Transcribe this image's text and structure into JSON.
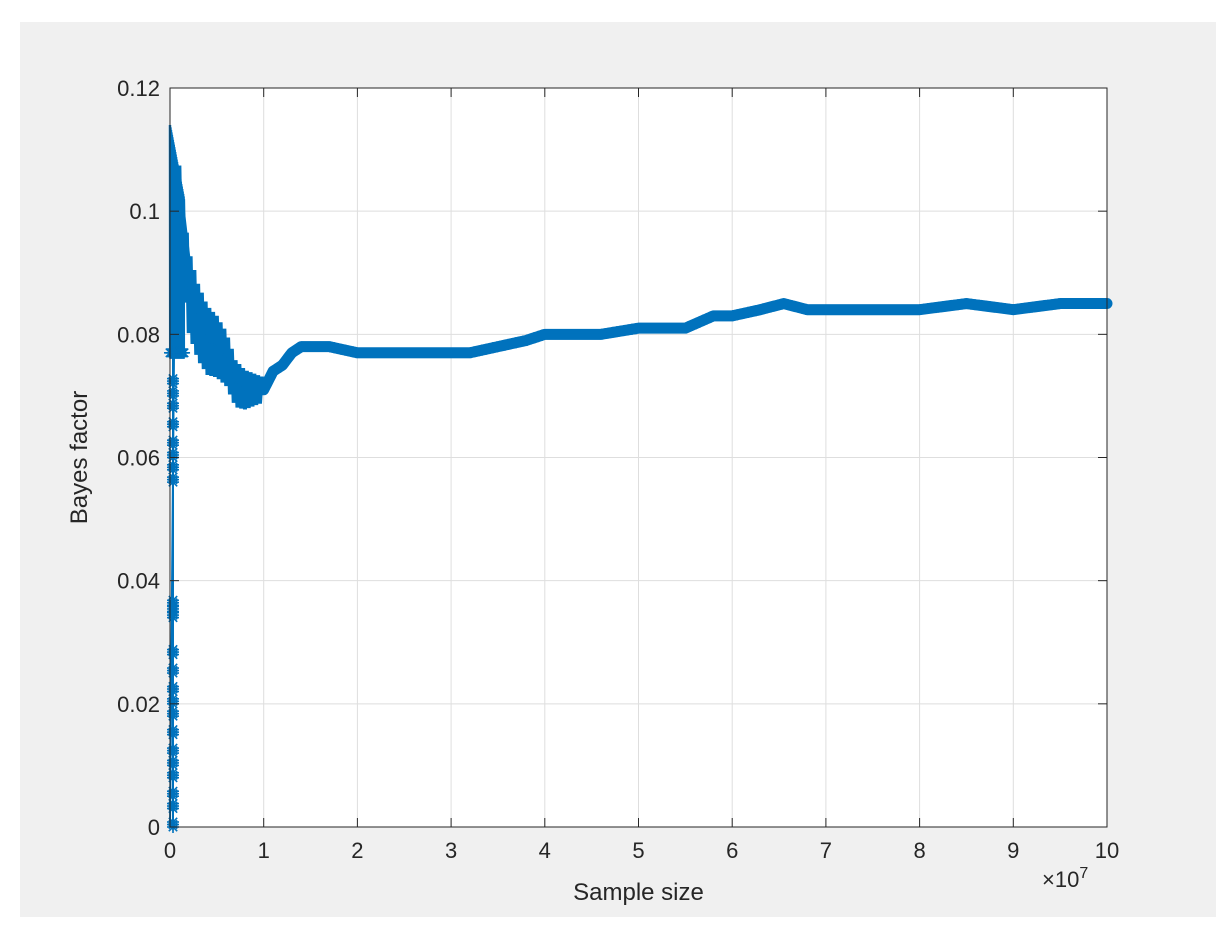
{
  "colors": {
    "figure_background": "#f0f0f0",
    "axes_background": "#ffffff",
    "series": "#0072bd",
    "axis": "#262626",
    "grid": "#dedede"
  },
  "chart_data": {
    "type": "line",
    "xlabel": "Sample size",
    "ylabel": "Bayes factor",
    "x_exponent_label": "×10",
    "x_exponent_power": "7",
    "xlim": [
      0,
      10
    ],
    "ylim": [
      0,
      0.12
    ],
    "x_ticks": [
      "0",
      "1",
      "2",
      "3",
      "4",
      "5",
      "6",
      "7",
      "8",
      "9",
      "10"
    ],
    "y_ticks": [
      "0",
      "0.02",
      "0.04",
      "0.06",
      "0.08",
      "0.1",
      "0.12"
    ],
    "grid": true,
    "marker": "asterisk",
    "series": [
      {
        "x": [
          0,
          0.05,
          0.1,
          0.2,
          0.3,
          0.4,
          0.5,
          0.6,
          0.7,
          0.8,
          0.9,
          1.0,
          1.1,
          1.2,
          1.3,
          1.4,
          1.5,
          1.7,
          2.0,
          2.2,
          2.5,
          2.8,
          3.0,
          3.2,
          3.5,
          3.8,
          4.0,
          4.3,
          4.6,
          5.0,
          5.2,
          5.5,
          5.8,
          6.0,
          6.3,
          6.55,
          6.8,
          7.0,
          7.5,
          8.0,
          8.5,
          9.0,
          9.5,
          10.0
        ],
        "y": [
          0,
          0.09,
          0.1,
          0.087,
          0.082,
          0.079,
          0.078,
          0.076,
          0.072,
          0.071,
          0.071,
          0.071,
          0.074,
          0.075,
          0.077,
          0.078,
          0.078,
          0.078,
          0.077,
          0.077,
          0.077,
          0.077,
          0.077,
          0.077,
          0.078,
          0.079,
          0.08,
          0.08,
          0.08,
          0.081,
          0.081,
          0.081,
          0.083,
          0.083,
          0.084,
          0.085,
          0.084,
          0.084,
          0.084,
          0.084,
          0.085,
          0.084,
          0.085,
          0.085
        ]
      }
    ],
    "early_vertical_markers": {
      "x": 0.0,
      "y": [
        0.0,
        0.003,
        0.005,
        0.008,
        0.01,
        0.012,
        0.015,
        0.018,
        0.02,
        0.022,
        0.025,
        0.028,
        0.034,
        0.035,
        0.036,
        0.056,
        0.058,
        0.06,
        0.062,
        0.065,
        0.068,
        0.07,
        0.072
      ]
    }
  }
}
